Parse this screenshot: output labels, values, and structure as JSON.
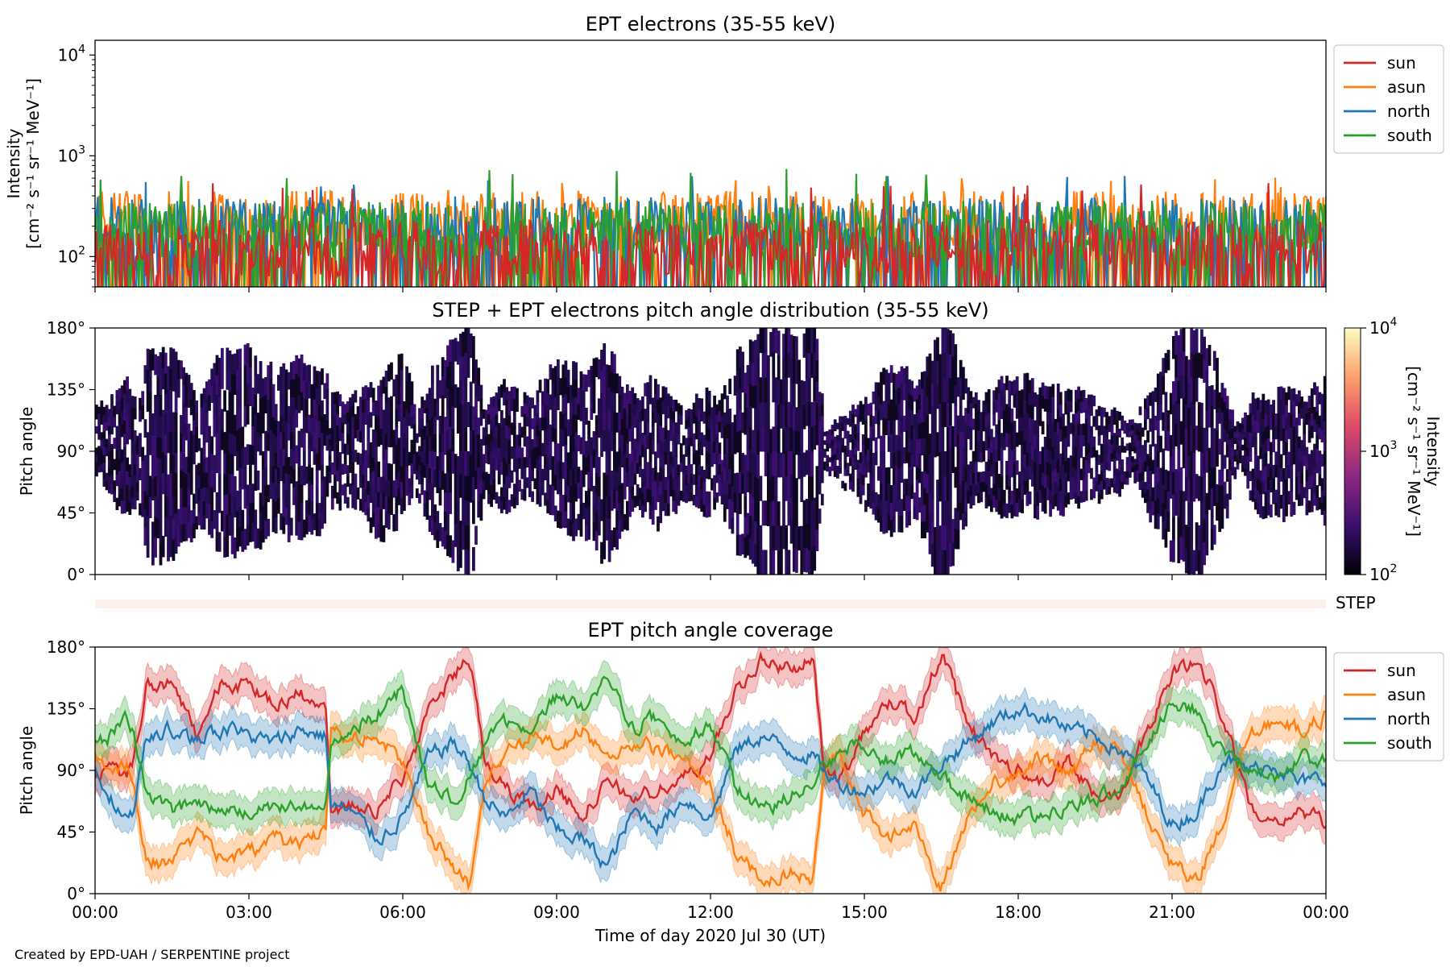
{
  "footer": "Created by EPD-UAH / SERPENTINE project",
  "xlabel": "Time of day 2020 Jul 30 (UT)",
  "x_ticks": [
    "00:00",
    "03:00",
    "06:00",
    "09:00",
    "12:00",
    "15:00",
    "18:00",
    "21:00",
    "00:00"
  ],
  "x_tick_hours": [
    0,
    3,
    6,
    9,
    12,
    15,
    18,
    21,
    24
  ],
  "chart_data": [
    {
      "type": "line",
      "title": "EPT electrons (35-55 keV)",
      "ylabel_line1": "Intensity",
      "ylabel_line2": "[cm⁻² s⁻¹ sr⁻¹ MeV⁻¹]",
      "yscale": "log",
      "ylim": [
        50,
        14000
      ],
      "y_ticks": [
        {
          "value": 100,
          "base": "10",
          "exp": "2"
        },
        {
          "value": 1000,
          "base": "10",
          "exp": "3"
        },
        {
          "value": 10000,
          "base": "10",
          "exp": "4"
        }
      ],
      "xlim": [
        0,
        24
      ],
      "legend": "outside-right",
      "series": [
        {
          "name": "sun",
          "color": "#d62728",
          "typical": 130,
          "peak": 550
        },
        {
          "name": "asun",
          "color": "#ff7f0e",
          "typical": 250,
          "peak": 610
        },
        {
          "name": "north",
          "color": "#1f77b4",
          "typical": 220,
          "peak": 640
        },
        {
          "name": "south",
          "color": "#2ca02c",
          "typical": 200,
          "peak": 760
        }
      ]
    },
    {
      "type": "heatmap",
      "title": "STEP + EPT electrons pitch angle distribution (35-55 keV)",
      "ylabel": "Pitch angle",
      "y_ticks": [
        "0°",
        "45°",
        "90°",
        "135°",
        "180°"
      ],
      "y_tick_values": [
        0,
        45,
        90,
        135,
        180
      ],
      "ylim": [
        0,
        180
      ],
      "xlim": [
        0,
        24
      ],
      "colorbar": {
        "label_line1": "Intensity",
        "label_line2": "[cm⁻² s⁻¹ sr⁻¹ MeV⁻¹]",
        "scale": "log",
        "range": [
          100,
          10000
        ],
        "ticks": [
          {
            "value": 100,
            "base": "10",
            "exp": "2"
          },
          {
            "value": 1000,
            "base": "10",
            "exp": "3"
          },
          {
            "value": 10000,
            "base": "10",
            "exp": "4"
          }
        ],
        "colormap": [
          "#000004",
          "#3b0f70",
          "#8c2981",
          "#de4968",
          "#fe9f6d",
          "#fcfdbf"
        ]
      },
      "dominant_value": 250,
      "step_strip_label": "STEP",
      "step_strip_color": "#fdf0ea"
    },
    {
      "type": "line",
      "title": "EPT pitch angle coverage",
      "ylabel": "Pitch angle",
      "y_ticks": [
        "0°",
        "45°",
        "90°",
        "135°",
        "180°"
      ],
      "y_tick_values": [
        0,
        45,
        90,
        135,
        180
      ],
      "ylim": [
        0,
        180
      ],
      "xlim": [
        0,
        24
      ],
      "legend": "outside-right",
      "band_half_width_deg": 12,
      "series": [
        {
          "name": "sun",
          "color": "#d62728",
          "t": [
            0,
            0.3,
            0.6,
            0.75,
            1,
            1.5,
            2,
            2.5,
            3,
            3.5,
            4,
            4.5,
            4.6,
            5,
            5.5,
            6,
            6.5,
            7,
            7.3,
            7.6,
            8,
            8.5,
            9,
            9.5,
            10,
            10.5,
            11,
            11.5,
            12,
            12.5,
            13,
            13.5,
            14,
            14.2,
            14.5,
            15,
            15.5,
            16,
            16.5,
            17,
            17.5,
            18,
            18.5,
            19,
            19.5,
            20,
            20.5,
            21,
            21.5,
            22,
            22.5,
            23,
            23.5,
            24
          ],
          "y": [
            80,
            95,
            85,
            95,
            150,
            155,
            115,
            155,
            150,
            140,
            145,
            130,
            60,
            65,
            60,
            85,
            130,
            160,
            175,
            100,
            75,
            65,
            75,
            60,
            80,
            70,
            75,
            85,
            100,
            150,
            170,
            165,
            170,
            95,
            80,
            120,
            140,
            130,
            175,
            125,
            100,
            90,
            80,
            95,
            70,
            75,
            120,
            160,
            170,
            130,
            65,
            55,
            60,
            50
          ]
        },
        {
          "name": "asun",
          "color": "#ff7f0e",
          "t": [
            0,
            0.3,
            0.6,
            0.75,
            1,
            1.5,
            2,
            2.5,
            3,
            3.5,
            4,
            4.5,
            4.6,
            5,
            5.5,
            6,
            6.5,
            7,
            7.3,
            7.6,
            8,
            8.5,
            9,
            9.5,
            10,
            10.5,
            11,
            11.5,
            12,
            12.5,
            13,
            13.5,
            14,
            14.2,
            14.5,
            15,
            15.5,
            16,
            16.5,
            17,
            17.5,
            18,
            18.5,
            19,
            19.5,
            20,
            20.5,
            21,
            21.5,
            22,
            22.5,
            23,
            23.5,
            24
          ],
          "y": [
            100,
            85,
            95,
            80,
            25,
            20,
            45,
            25,
            30,
            40,
            35,
            50,
            120,
            115,
            115,
            95,
            45,
            20,
            5,
            80,
            105,
            115,
            105,
            120,
            100,
            110,
            105,
            95,
            80,
            30,
            10,
            15,
            10,
            85,
            100,
            60,
            40,
            50,
            5,
            55,
            80,
            90,
            100,
            85,
            110,
            105,
            60,
            20,
            10,
            50,
            115,
            125,
            120,
            130
          ]
        },
        {
          "name": "north",
          "color": "#1f77b4",
          "t": [
            0,
            0.3,
            0.6,
            0.75,
            1,
            1.5,
            2,
            2.5,
            3,
            3.5,
            4,
            4.5,
            4.6,
            5,
            5.5,
            6,
            6.5,
            7,
            7.3,
            7.6,
            8,
            8.5,
            9,
            9.5,
            10,
            10.5,
            11,
            11.5,
            12,
            12.5,
            13,
            13.5,
            14,
            14.2,
            14.5,
            15,
            15.5,
            16,
            16.5,
            17,
            17.5,
            18,
            18.5,
            19,
            19.5,
            20,
            20.5,
            21,
            21.5,
            22,
            22.5,
            23,
            23.5,
            24
          ],
          "y": [
            90,
            70,
            55,
            60,
            115,
            120,
            110,
            120,
            115,
            110,
            120,
            115,
            65,
            60,
            40,
            55,
            100,
            110,
            95,
            70,
            55,
            75,
            45,
            40,
            20,
            60,
            50,
            70,
            55,
            105,
            115,
            105,
            100,
            90,
            80,
            75,
            85,
            75,
            95,
            110,
            125,
            135,
            130,
            120,
            115,
            105,
            85,
            50,
            60,
            100,
            90,
            95,
            80,
            85
          ]
        },
        {
          "name": "south",
          "color": "#2ca02c",
          "t": [
            0,
            0.3,
            0.6,
            0.75,
            1,
            1.5,
            2,
            2.5,
            3,
            3.5,
            4,
            4.5,
            4.6,
            5,
            5.5,
            6,
            6.5,
            7,
            7.3,
            7.6,
            8,
            8.5,
            9,
            9.5,
            10,
            10.5,
            11,
            11.5,
            12,
            12.5,
            13,
            13.5,
            14,
            14.2,
            14.5,
            15,
            15.5,
            16,
            16.5,
            17,
            17.5,
            18,
            18.5,
            19,
            19.5,
            20,
            20.5,
            21,
            21.5,
            22,
            22.5,
            23,
            23.5,
            24
          ],
          "y": [
            110,
            115,
            125,
            120,
            70,
            60,
            65,
            60,
            60,
            65,
            60,
            70,
            110,
            120,
            130,
            150,
            80,
            70,
            85,
            110,
            125,
            115,
            145,
            135,
            160,
            120,
            130,
            110,
            125,
            75,
            60,
            70,
            80,
            95,
            100,
            110,
            95,
            105,
            85,
            70,
            60,
            55,
            60,
            65,
            70,
            80,
            110,
            140,
            135,
            100,
            90,
            85,
            100,
            95
          ]
        }
      ]
    }
  ]
}
